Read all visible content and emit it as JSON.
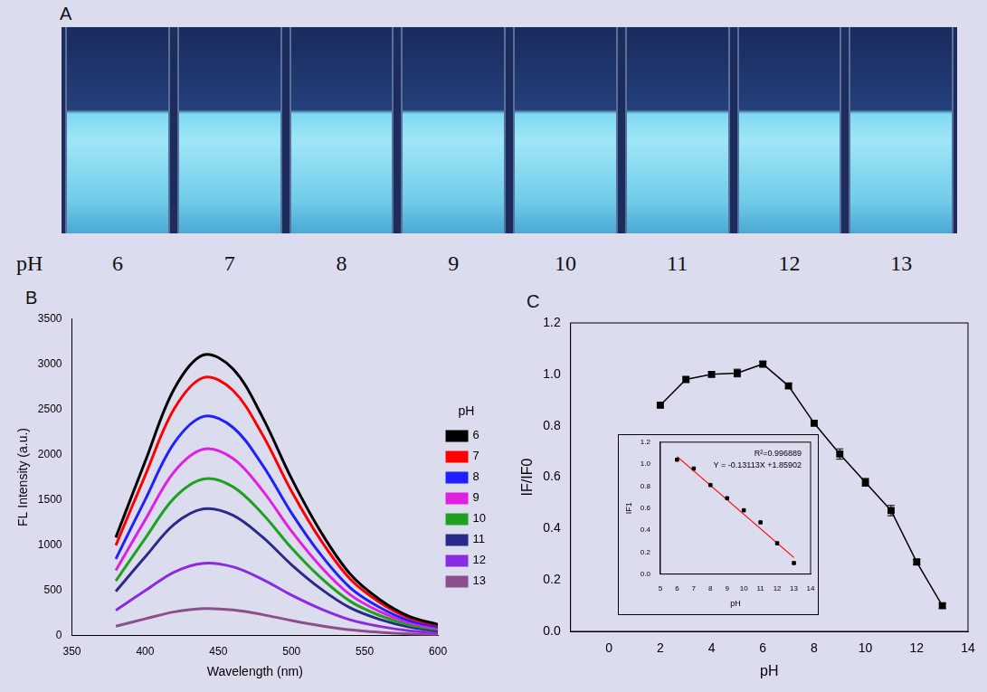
{
  "panel_labels": [
    "A",
    "B",
    "C"
  ],
  "photo": {
    "x_label": "pH",
    "labels": [
      6,
      7,
      8,
      9,
      10,
      11,
      12,
      13
    ]
  },
  "chart_data": [
    {
      "type": "line",
      "x_label": "Wavelength (nm)",
      "y_label": "FL Intensity (a.u.)",
      "legend_title": "pH",
      "x": [
        380,
        400,
        420,
        440,
        460,
        480,
        500,
        520,
        540,
        560,
        580,
        600
      ],
      "series": [
        {
          "name": "6",
          "color": "#000000",
          "values": [
            1085,
            1922,
            2728,
            3100,
            2945,
            2418,
            1736,
            1147,
            682,
            403,
            217,
            124
          ]
        },
        {
          "name": "7",
          "color": "#ff0000",
          "values": [
            998,
            1767,
            2508,
            2850,
            2708,
            2223,
            1596,
            1055,
            627,
            371,
            200,
            114
          ]
        },
        {
          "name": "8",
          "color": "#2020ff",
          "values": [
            847,
            1500,
            2130,
            2420,
            2299,
            1888,
            1355,
            895,
            532,
            315,
            169,
            97
          ]
        },
        {
          "name": "9",
          "color": "#e020e0",
          "values": [
            721,
            1277,
            1813,
            2060,
            1957,
            1607,
            1154,
            762,
            453,
            268,
            144,
            82
          ]
        },
        {
          "name": "10",
          "color": "#20a020",
          "values": [
            606,
            1073,
            1522,
            1730,
            1644,
            1349,
            969,
            640,
            381,
            225,
            121,
            69
          ]
        },
        {
          "name": "11",
          "color": "#2a2a8a",
          "values": [
            490,
            868,
            1232,
            1400,
            1330,
            1092,
            784,
            518,
            308,
            182,
            98,
            56
          ]
        },
        {
          "name": "12",
          "color": "#8a2be2",
          "values": [
            280,
            496,
            704,
            800,
            760,
            624,
            448,
            296,
            176,
            104,
            56,
            32
          ]
        },
        {
          "name": "13",
          "color": "#8b4f8b",
          "values": [
            105,
            186,
            264,
            300,
            285,
            234,
            168,
            111,
            66,
            39,
            21,
            12
          ]
        }
      ],
      "xlim": [
        350,
        600
      ],
      "xticks": [
        350,
        400,
        450,
        500,
        550,
        600
      ],
      "ylim": [
        0,
        3500
      ],
      "yticks": [
        0,
        500,
        1000,
        1500,
        2000,
        2500,
        3000,
        3500
      ],
      "grid": false,
      "legend": "right"
    },
    {
      "type": "line",
      "marker": "square",
      "color": "#000000",
      "x_label": "pH",
      "y_label": "IF/IF0",
      "x": [
        2,
        3,
        4,
        5,
        6,
        7,
        8,
        9,
        10,
        11,
        12,
        13
      ],
      "values": [
        0.88,
        0.98,
        1.0,
        1.005,
        1.04,
        0.955,
        0.81,
        0.69,
        0.58,
        0.47,
        0.27,
        0.1
      ],
      "errors": [
        0.01,
        0.01,
        0.01,
        0.015,
        0.01,
        0.01,
        0.01,
        0.02,
        0.015,
        0.02,
        0.01,
        0.01
      ],
      "xlim": [
        -1.5,
        14
      ],
      "xticks": [
        0,
        2,
        4,
        6,
        8,
        10,
        12,
        14
      ],
      "ylim": [
        0,
        1.2
      ],
      "yticks": [
        {
          "value": 0,
          "label": "0.0"
        },
        0.2,
        0.4,
        0.6,
        0.8,
        {
          "value": 1,
          "label": "1.0"
        },
        1.2
      ],
      "grid": false
    },
    {
      "type": "scatter",
      "marker": "square",
      "color": "#000000",
      "x_label": "pH",
      "y_label": "IF1",
      "x": [
        6,
        7,
        8,
        9,
        10,
        11,
        12,
        13
      ],
      "values": [
        1.04,
        0.96,
        0.81,
        0.69,
        0.58,
        0.47,
        0.28,
        0.1
      ],
      "fit": {
        "x": [
          6,
          13
        ],
        "values": [
          1.07,
          0.15
        ],
        "color": "#ff0000"
      },
      "annotations": [
        "R²=0.996889",
        "Y = -0.13113X +1.85902"
      ],
      "xlim": [
        5,
        14
      ],
      "xticks": [
        5,
        6,
        7,
        8,
        9,
        10,
        11,
        12,
        13,
        14
      ],
      "ylim": [
        0,
        1.2
      ],
      "yticks": [
        {
          "value": 0,
          "label": "0.0"
        },
        0.2,
        0.4,
        0.6,
        0.8,
        {
          "value": 1,
          "label": "1.0"
        },
        1.2
      ],
      "grid": false
    }
  ]
}
